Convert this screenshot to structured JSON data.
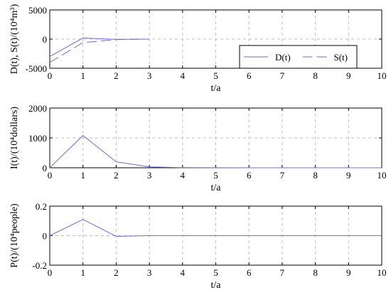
{
  "chart_data": [
    {
      "type": "line",
      "xlabel": "t/a",
      "ylabel": "D(t), S(t)/(10⁴m³)",
      "xlim": [
        0,
        10
      ],
      "ylim": [
        -5000,
        5000
      ],
      "xticks": [
        "0",
        "1",
        "2",
        "3",
        "4",
        "5",
        "6",
        "7",
        "8",
        "9",
        "10"
      ],
      "yticks": [
        "5000",
        "0",
        "-5000"
      ],
      "grid": true,
      "legend": "inside-right",
      "series": [
        {
          "name": "D(t)",
          "style": "solid",
          "color": "#6a6aff",
          "x": [
            0,
            1,
            2,
            3
          ],
          "y": [
            -3000,
            200,
            -50,
            0
          ]
        },
        {
          "name": "S(t)",
          "style": "dashed",
          "color": "#6a6aff",
          "x": [
            0,
            1,
            2,
            3
          ],
          "y": [
            -4000,
            -600,
            -80,
            0
          ]
        }
      ]
    },
    {
      "type": "line",
      "xlabel": "t/a",
      "ylabel": "I(t)/(10⁴dollars)",
      "xlim": [
        0,
        10
      ],
      "ylim": [
        0,
        2000
      ],
      "xticks": [
        "0",
        "1",
        "2",
        "3",
        "4",
        "5",
        "6",
        "7",
        "8",
        "9",
        "10"
      ],
      "yticks": [
        "2000",
        "1000",
        "0"
      ],
      "grid": true,
      "series": [
        {
          "name": "",
          "style": "solid",
          "color": "#6a6aff",
          "x": [
            0,
            1,
            2,
            3,
            4,
            5,
            6,
            7,
            8,
            9,
            10
          ],
          "y": [
            0,
            1080,
            200,
            30,
            5,
            2,
            1,
            0,
            0,
            0,
            0
          ]
        }
      ]
    },
    {
      "type": "line",
      "xlabel": "t/a",
      "ylabel": "P(t)/(10⁴people)",
      "xlim": [
        0,
        10
      ],
      "ylim": [
        -0.2,
        0.2
      ],
      "xticks": [
        "0",
        "1",
        "2",
        "3",
        "4",
        "5",
        "6",
        "7",
        "8",
        "9",
        "10"
      ],
      "yticks": [
        "0.2",
        "0",
        "-0.2"
      ],
      "grid": true,
      "series": [
        {
          "name": "",
          "style": "solid",
          "color": "#6a6aff",
          "x": [
            0,
            1,
            2,
            3,
            4,
            5,
            6,
            7,
            8,
            9,
            10
          ],
          "y": [
            0,
            0.11,
            -0.005,
            0,
            0,
            0,
            0,
            0,
            0,
            0,
            0
          ]
        }
      ]
    }
  ]
}
